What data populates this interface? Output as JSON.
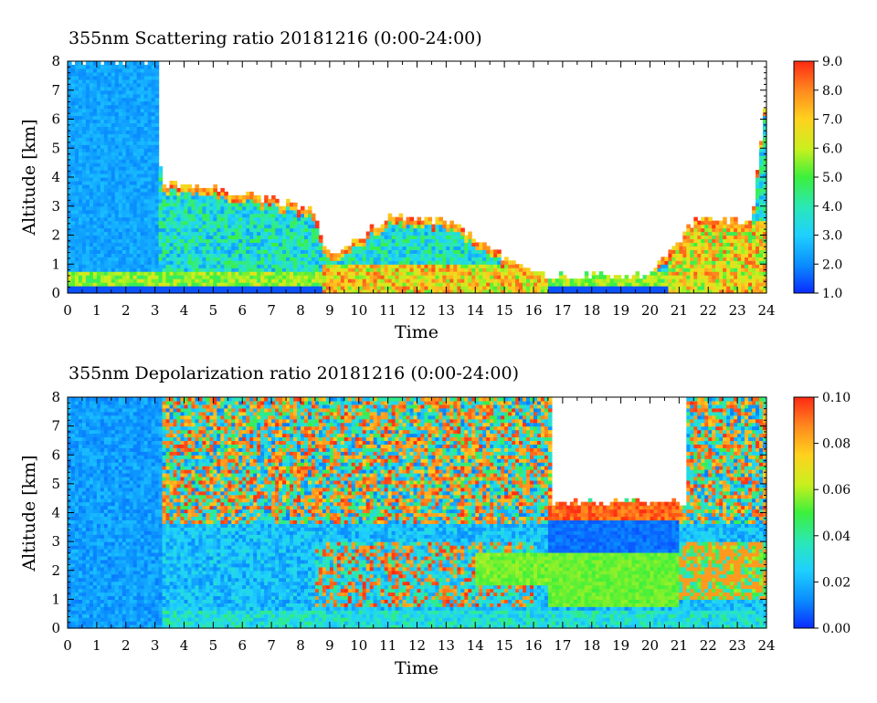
{
  "chart_data": [
    {
      "type": "heatmap",
      "title": "355nm Scattering ratio  20181216 (0:00-24:00)",
      "xlabel": "Time",
      "ylabel": "Altitude [km]",
      "xlim": [
        0,
        24
      ],
      "ylim": [
        0,
        8
      ],
      "x_ticks": [
        "0",
        "1",
        "2",
        "3",
        "4",
        "5",
        "6",
        "7",
        "8",
        "9",
        "10",
        "11",
        "12",
        "13",
        "14",
        "15",
        "16",
        "17",
        "18",
        "19",
        "20",
        "21",
        "22",
        "23",
        "24"
      ],
      "y_ticks": [
        "0",
        "1",
        "2",
        "3",
        "4",
        "5",
        "6",
        "7",
        "8"
      ],
      "colorbar": {
        "range": [
          1.0,
          9.0
        ],
        "ticks": [
          "1.0",
          "2.0",
          "3.0",
          "4.0",
          "5.0",
          "6.0",
          "7.0",
          "8.0",
          "9.0"
        ],
        "colors": [
          "#0a2cff",
          "#0a8cff",
          "#1fd0ff",
          "#2ae8b8",
          "#3cf03c",
          "#c8f01e",
          "#ffd21e",
          "#ff8c1e",
          "#ff2a14"
        ]
      },
      "cloud_top_km_by_hour": [
        {
          "t": 0,
          "top": 8.0
        },
        {
          "t": 3.1,
          "top": 8.0
        },
        {
          "t": 3.2,
          "top": 3.8
        },
        {
          "t": 5,
          "top": 3.6
        },
        {
          "t": 7,
          "top": 3.2
        },
        {
          "t": 8.3,
          "top": 3.0
        },
        {
          "t": 9,
          "top": 1.2
        },
        {
          "t": 11,
          "top": 2.6
        },
        {
          "t": 13,
          "top": 2.5
        },
        {
          "t": 15,
          "top": 1.2
        },
        {
          "t": 16.5,
          "top": 0.6
        },
        {
          "t": 20,
          "top": 0.6
        },
        {
          "t": 21.5,
          "top": 2.5
        },
        {
          "t": 23.5,
          "top": 2.5
        },
        {
          "t": 24,
          "top": 7.0
        }
      ]
    },
    {
      "type": "heatmap",
      "title": "355nm Depolarization ratio  20181216 (0:00-24:00)",
      "xlabel": "Time",
      "ylabel": "Altitude [km]",
      "xlim": [
        0,
        24
      ],
      "ylim": [
        0,
        8
      ],
      "x_ticks": [
        "0",
        "1",
        "2",
        "3",
        "4",
        "5",
        "6",
        "7",
        "8",
        "9",
        "10",
        "11",
        "12",
        "13",
        "14",
        "15",
        "16",
        "17",
        "18",
        "19",
        "20",
        "21",
        "22",
        "23",
        "24"
      ],
      "y_ticks": [
        "0",
        "1",
        "2",
        "3",
        "4",
        "5",
        "6",
        "7",
        "8"
      ],
      "colorbar": {
        "range": [
          0.0,
          0.1
        ],
        "ticks": [
          "0.00",
          "0.02",
          "0.04",
          "0.06",
          "0.08",
          "0.10"
        ],
        "colors": [
          "#0a2cff",
          "#0a8cff",
          "#1fd0ff",
          "#2ae8b8",
          "#3cf03c",
          "#c8f01e",
          "#ffd21e",
          "#ff8c1e",
          "#ff2a14"
        ]
      },
      "no_data_region": {
        "t_start": 16.6,
        "t_end": 21.2,
        "alt_from_km": 4.2,
        "alt_to_km": 8.0
      }
    }
  ]
}
